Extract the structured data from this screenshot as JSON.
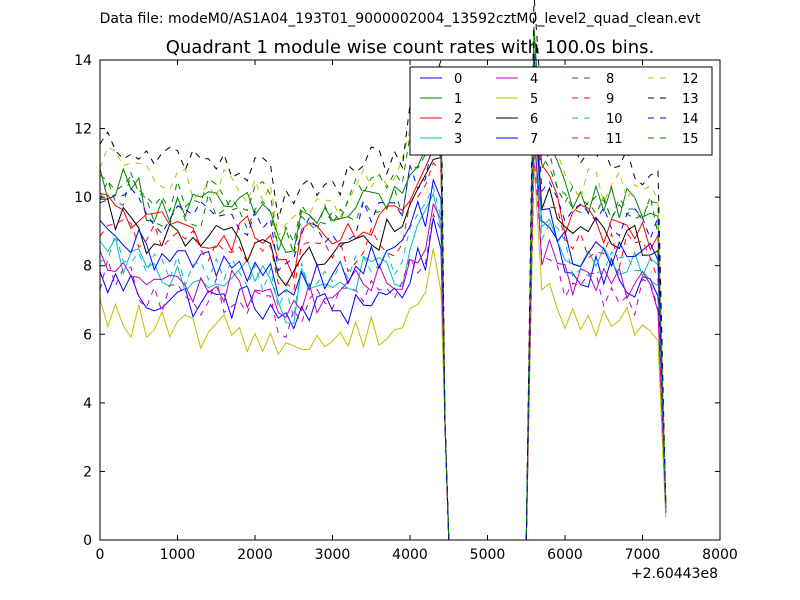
{
  "chart_data": {
    "type": "line",
    "suptitle": "Data file: modeM0/AS1A04_193T01_9000002004_13592cztM0_level2_quad_clean.evt",
    "title": "Quadrant 1 module wise count rates with 100.0s bins.",
    "xlabel": "",
    "ylabel": "",
    "x_offset_label": "+2.60443e8",
    "xlim": [
      0,
      8000
    ],
    "ylim": [
      0,
      14
    ],
    "xticks": [
      0,
      1000,
      2000,
      3000,
      4000,
      5000,
      6000,
      7000,
      8000
    ],
    "yticks": [
      0,
      2,
      4,
      6,
      8,
      10,
      12,
      14
    ],
    "legend_position": "top-right",
    "grid": false,
    "series_styles": [
      {
        "name": "0",
        "color": "#0000ff",
        "style": "solid"
      },
      {
        "name": "1",
        "color": "#008000",
        "style": "solid"
      },
      {
        "name": "2",
        "color": "#ff0000",
        "style": "solid"
      },
      {
        "name": "3",
        "color": "#00bfbf",
        "style": "solid"
      },
      {
        "name": "4",
        "color": "#bf00bf",
        "style": "solid"
      },
      {
        "name": "5",
        "color": "#bfbf00",
        "style": "solid"
      },
      {
        "name": "6",
        "color": "#000000",
        "style": "solid"
      },
      {
        "name": "7",
        "color": "#0000ff",
        "style": "solid"
      },
      {
        "name": "8",
        "color": "#008000",
        "style": "dashed"
      },
      {
        "name": "9",
        "color": "#ff0000",
        "style": "dashed"
      },
      {
        "name": "10",
        "color": "#00bfbf",
        "style": "dashed"
      },
      {
        "name": "11",
        "color": "#bf00bf",
        "style": "dashed"
      },
      {
        "name": "12",
        "color": "#bfbf00",
        "style": "dashed"
      },
      {
        "name": "13",
        "color": "#000000",
        "style": "dashed"
      },
      {
        "name": "14",
        "color": "#0000ff",
        "style": "dashed"
      },
      {
        "name": "15",
        "color": "#008000",
        "style": "dashed"
      }
    ],
    "segments": [
      {
        "x_start": 0,
        "x_step": 100,
        "count": 45,
        "note": "first observation segment 0-4400"
      },
      {
        "x_start": 4500,
        "x_step": 100,
        "count": 11,
        "note": "gap with zero counts 4500-5500"
      },
      {
        "x_start": 5600,
        "x_step": 100,
        "count": 18,
        "note": "second observation segment 5600-7300"
      }
    ],
    "series": [
      {
        "name": "0",
        "level_seg1": 6.9,
        "level_seg2": 7.6,
        "end_value": 1.0
      },
      {
        "name": "1",
        "level_seg1": 9.6,
        "level_seg2": 9.8,
        "end_value": 1.1
      },
      {
        "name": "2",
        "level_seg1": 8.9,
        "level_seg2": 9.0,
        "end_value": 0.9
      },
      {
        "name": "3",
        "level_seg1": 7.6,
        "level_seg2": 7.9,
        "end_value": 0.9
      },
      {
        "name": "4",
        "level_seg1": 7.3,
        "level_seg2": 7.4,
        "end_value": 0.8
      },
      {
        "name": "5",
        "level_seg1": 6.0,
        "level_seg2": 6.3,
        "end_value": 0.65
      },
      {
        "name": "6",
        "level_seg1": 8.6,
        "level_seg2": 8.8,
        "end_value": 1.0
      },
      {
        "name": "7",
        "level_seg1": 8.0,
        "level_seg2": 8.3,
        "end_value": 0.95
      },
      {
        "name": "8",
        "level_seg1": 9.5,
        "level_seg2": 9.8,
        "end_value": 1.0
      },
      {
        "name": "9",
        "level_seg1": 8.5,
        "level_seg2": 8.4,
        "end_value": 0.9
      },
      {
        "name": "10",
        "level_seg1": 7.8,
        "level_seg2": 8.0,
        "end_value": 0.85
      },
      {
        "name": "11",
        "level_seg1": 7.0,
        "level_seg2": 7.1,
        "end_value": 0.8
      },
      {
        "name": "12",
        "level_seg1": 10.2,
        "level_seg2": 10.2,
        "end_value": 1.0
      },
      {
        "name": "13",
        "level_seg1": 10.8,
        "level_seg2": 10.8,
        "end_value": 1.0
      },
      {
        "name": "14",
        "level_seg1": 9.2,
        "level_seg2": 9.2,
        "end_value": 0.95
      },
      {
        "name": "15",
        "level_seg1": 9.9,
        "level_seg2": 9.6,
        "end_value": 1.05
      }
    ]
  }
}
